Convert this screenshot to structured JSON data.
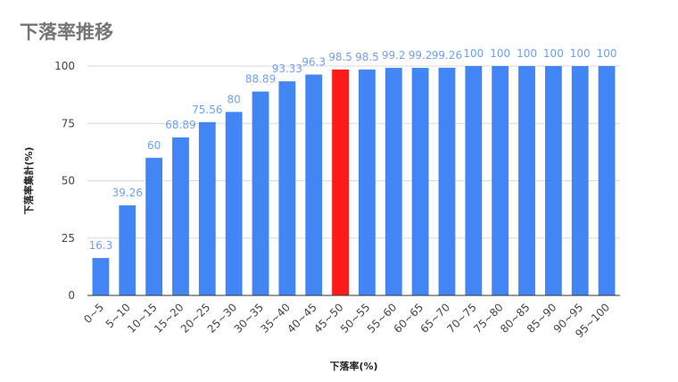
{
  "chart_data": {
    "type": "bar",
    "title": "下落率推移",
    "xlabel": "下落率(%)",
    "ylabel": "下落率集計(%)",
    "ylim": [
      0,
      100
    ],
    "yticks": [
      0,
      25,
      50,
      75,
      100
    ],
    "grid": true,
    "legend": "none",
    "categories": [
      "0~5",
      "5~10",
      "10~15",
      "15~20",
      "20~25",
      "25~30",
      "30~35",
      "35~40",
      "40~45",
      "45~50",
      "50~55",
      "55~60",
      "60~65",
      "65~70",
      "70~75",
      "75~80",
      "80~85",
      "85~90",
      "90~95",
      "95~100"
    ],
    "values": [
      16.3,
      39.26,
      60,
      68.89,
      75.56,
      80,
      88.89,
      93.33,
      96.3,
      98.5,
      98.5,
      99.2,
      99.2,
      99.26,
      100,
      100,
      100,
      100,
      100,
      100
    ],
    "data_labels": [
      "16.3",
      "39.26",
      "60",
      "68.89",
      "75.56",
      "80",
      "88.89",
      "93.33",
      "96.3",
      "98.5",
      "98.5",
      "99.2",
      "99.2",
      "99.26",
      "100",
      "100",
      "100",
      "100",
      "100",
      "100"
    ],
    "colors": {
      "bar": "#4285f4",
      "highlight": "#ff1a1a",
      "label": "#6fa0f0",
      "grid": "#d9d9d9",
      "axis": "#333333"
    },
    "highlight_category": "45~50"
  }
}
